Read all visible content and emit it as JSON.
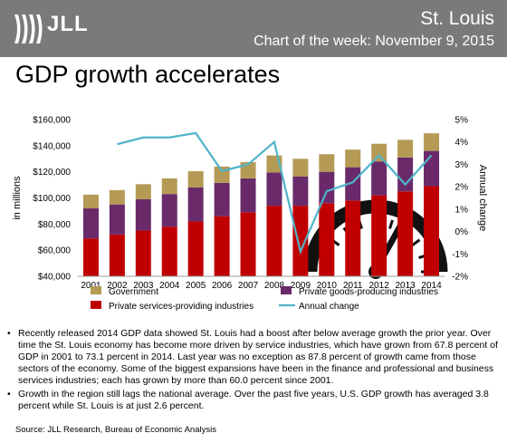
{
  "header": {
    "brand": "JLL",
    "city": "St. Louis",
    "subtitle": "Chart of the week: November 9, 2015"
  },
  "headline": "GDP growth accelerates",
  "chart_data": {
    "type": "bar",
    "stacked": true,
    "categories": [
      "2001",
      "2002",
      "2003",
      "2004",
      "2005",
      "2006",
      "2007",
      "2008",
      "2009",
      "2010",
      "2011",
      "2012",
      "2013",
      "2014"
    ],
    "series": [
      {
        "name": "Private services-providing industries",
        "color": "#c00000",
        "values": [
          69000,
          72000,
          75000,
          78000,
          82000,
          86000,
          89000,
          94000,
          94000,
          96000,
          98000,
          102000,
          105000,
          109000
        ]
      },
      {
        "name": "Private goods-producing industries",
        "color": "#6a2a6a",
        "values": [
          23000,
          23000,
          24000,
          25000,
          26000,
          25500,
          26000,
          25500,
          22500,
          24000,
          25500,
          26000,
          26000,
          27000
        ]
      },
      {
        "name": "Government",
        "color": "#b49a55",
        "values": [
          10500,
          11000,
          11500,
          12000,
          12500,
          12500,
          12500,
          13000,
          13500,
          13500,
          13500,
          13500,
          13500,
          13500
        ]
      },
      {
        "name": "Annual change",
        "type": "line",
        "axis": "right",
        "color": "#4fb3c9",
        "values": [
          null,
          3.9,
          4.2,
          4.2,
          4.4,
          2.7,
          3.0,
          4.0,
          -0.9,
          1.8,
          2.2,
          3.4,
          2.1,
          3.4
        ]
      }
    ],
    "ylabel": "in millions",
    "ylabel_right": "Annual change",
    "ylim": [
      40000,
      160000
    ],
    "yticks": [
      40000,
      60000,
      80000,
      100000,
      120000,
      140000,
      160000
    ],
    "ytick_labels": [
      "$40,000",
      "$60,000",
      "$80,000",
      "$100,000",
      "$120,000",
      "$140,000",
      "$160,000"
    ],
    "ylim_right": [
      -2,
      5
    ],
    "yticks_right": [
      -2,
      -1,
      0,
      1,
      2,
      3,
      4,
      5
    ],
    "ytick_labels_right": [
      "-2%",
      "-1%",
      "0%",
      "1%",
      "2%",
      "3%",
      "4%",
      "5%"
    ],
    "legend_position": "bottom",
    "grid": false
  },
  "bullets": [
    "Recently released 2014 GDP data showed St. Louis had a boost after below average growth the prior year. Over time the St. Louis economy has become more driven by service industries, which have grown from 67.8 percent of GDP in 2001 to 73.1 percent in 2014. Last year was no exception as 87.8 percent of growth came from those sectors of the economy. Some of the biggest expansions have been in the finance and professional and business services industries; each has grown by more than 60.0 percent since 2001.",
    "Growth in the region still lags the national average. Over the past five years, U.S. GDP growth has averaged 3.8 percent while St. Louis is at just 2.6 percent."
  ],
  "source": "Source: JLL Research, Bureau of Economic Analysis",
  "colors": {
    "header_bg": "#7a7a7a",
    "gauge": "#111111",
    "gauge_red": "#c00000"
  }
}
